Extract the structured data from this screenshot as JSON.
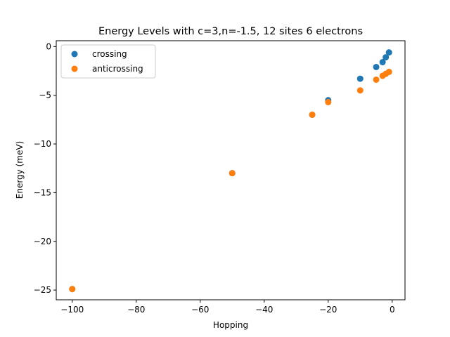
{
  "chart_data": {
    "type": "scatter",
    "title": "Energy Levels with c=3,n=-1.5, 12 sites 6 electrons",
    "xlabel": "Hopping",
    "ylabel": "Energy (meV)",
    "xlim": [
      -105,
      4
    ],
    "ylim": [
      -26,
      0.6
    ],
    "xticks": [
      -100,
      -80,
      -60,
      -40,
      -20,
      0
    ],
    "yticks": [
      -25,
      -20,
      -15,
      -10,
      -5,
      0
    ],
    "xtick_labels": [
      "−100",
      "−80",
      "−60",
      "−40",
      "−20",
      "0"
    ],
    "ytick_labels": [
      "−25",
      "−20",
      "−15",
      "−10",
      "−5",
      "0"
    ],
    "grid": false,
    "legend_position": "top-left",
    "series": [
      {
        "name": "crossing",
        "color": "#1f77b4",
        "x": [
          -100,
          -50,
          -25,
          -20,
          -10,
          -5,
          -3,
          -2,
          -1
        ],
        "y": [
          -24.9,
          -13.0,
          -7.0,
          -5.5,
          -3.3,
          -2.1,
          -1.6,
          -1.1,
          -0.6
        ]
      },
      {
        "name": "anticrossing",
        "color": "#ff7f0e",
        "x": [
          -100,
          -50,
          -25,
          -20,
          -10,
          -5,
          -3,
          -2,
          -1
        ],
        "y": [
          -24.9,
          -13.0,
          -7.0,
          -5.7,
          -4.5,
          -3.4,
          -3.0,
          -2.8,
          -2.6
        ]
      }
    ]
  }
}
